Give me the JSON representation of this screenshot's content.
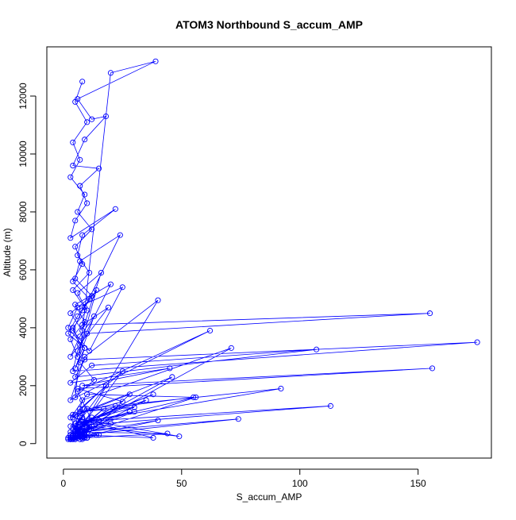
{
  "chart_data": {
    "type": "line",
    "title": "ATOM3 Northbound S_accum_AMP",
    "xlabel": "S_accum_AMP",
    "ylabel": "Altitude (m)",
    "xlim": [
      -7,
      181
    ],
    "ylim": [
      -500,
      13700
    ],
    "x_ticks": [
      0,
      50,
      100,
      150
    ],
    "y_ticks": [
      0,
      2000,
      4000,
      6000,
      8000,
      10000,
      12000
    ],
    "x_tick_labels": [
      "0",
      "50",
      "100",
      "150"
    ],
    "y_tick_labels": [
      "0",
      "2000",
      "4000",
      "6000",
      "8000",
      "10000",
      "12000"
    ],
    "grid": false,
    "series_color": "#0000ff",
    "series": [
      {
        "x": [
          8,
          5,
          10,
          4,
          7,
          3,
          9,
          6,
          12,
          5,
          8,
          4,
          11,
          6,
          2,
          9,
          7,
          13,
          5,
          20,
          39,
          6,
          12,
          18,
          9,
          4,
          15,
          7,
          10,
          5,
          3,
          22,
          8,
          6,
          11,
          4,
          9,
          24,
          7,
          5,
          12,
          3,
          8,
          16,
          6,
          10,
          4,
          7,
          20,
          5,
          9,
          3,
          6,
          14,
          8,
          4,
          11,
          25,
          6,
          2,
          9,
          5,
          13,
          7,
          3,
          19,
          8,
          155,
          10,
          6,
          4,
          175,
          9,
          5,
          107,
          12,
          3,
          45,
          8,
          156,
          6,
          25,
          4,
          10,
          55,
          7,
          30,
          5,
          92,
          9,
          3,
          113,
          15,
          6,
          74,
          8,
          38,
          4,
          49,
          11,
          5,
          7,
          44,
          9,
          28,
          3,
          6,
          17,
          8,
          4,
          12,
          5,
          10,
          7,
          14,
          3,
          20,
          6,
          9,
          5,
          8,
          4,
          35,
          7,
          30,
          5,
          12,
          6,
          3,
          40,
          9,
          4,
          15,
          7,
          5,
          10,
          8,
          3,
          22,
          6,
          4,
          25,
          7,
          11,
          5,
          40,
          9,
          3,
          62,
          6,
          12,
          4,
          71,
          8,
          5,
          38,
          10,
          7,
          3,
          56,
          9,
          4,
          28,
          6,
          46,
          5,
          18,
          8,
          3,
          10,
          4,
          7,
          5,
          9,
          3,
          12,
          6,
          4,
          8,
          5,
          2,
          7,
          4,
          9,
          3,
          6,
          11,
          5,
          8,
          4,
          2,
          7,
          10,
          3,
          6,
          5,
          9,
          4,
          8,
          3
        ],
        "y": [
          12500,
          11800,
          11100,
          10400,
          9800,
          9200,
          8600,
          8000,
          7400,
          6800,
          6200,
          5600,
          5000,
          4400,
          3800,
          3300,
          2800,
          2200,
          1600,
          12800,
          13200,
          11900,
          11200,
          11300,
          10500,
          9600,
          9500,
          8900,
          8300,
          7700,
          7100,
          8100,
          7200,
          6500,
          5900,
          5300,
          4700,
          7200,
          6300,
          5700,
          5100,
          4500,
          3900,
          5900,
          5200,
          4600,
          4000,
          3400,
          5500,
          4800,
          4200,
          3600,
          3000,
          5300,
          4600,
          3900,
          3200,
          5400,
          4700,
          4000,
          3300,
          2600,
          4400,
          3700,
          3000,
          4700,
          4100,
          4500,
          3800,
          3200,
          2500,
          3500,
          2900,
          2300,
          3250,
          2700,
          2100,
          2600,
          2000,
          2600,
          1900,
          1450,
          1000,
          1700,
          1600,
          1100,
          1250,
          700,
          1900,
          1200,
          600,
          1300,
          800,
          400,
          850,
          300,
          200,
          900,
          250,
          600,
          150,
          400,
          350,
          200,
          1700,
          900,
          400,
          1200,
          600,
          300,
          900,
          450,
          200,
          600,
          300,
          150,
          700,
          350,
          200,
          150,
          400,
          200,
          1500,
          700,
          1100,
          300,
          600,
          200,
          150,
          800,
          400,
          200,
          300,
          150,
          250,
          200,
          150,
          400,
          1300,
          500,
          200,
          2500,
          1200,
          500,
          200,
          4950,
          3000,
          1500,
          3900,
          1800,
          800,
          300,
          3300,
          1500,
          600,
          1700,
          800,
          400,
          200,
          1600,
          700,
          300,
          1100,
          500,
          2300,
          1000,
          2000,
          900,
          300,
          1200,
          500,
          900,
          400,
          700,
          300,
          600,
          300,
          200,
          400,
          200,
          150,
          300,
          200,
          400,
          200,
          300,
          500,
          250,
          200,
          150,
          200,
          300,
          200,
          150,
          250,
          200,
          300,
          150,
          200,
          150
        ]
      }
    ]
  }
}
